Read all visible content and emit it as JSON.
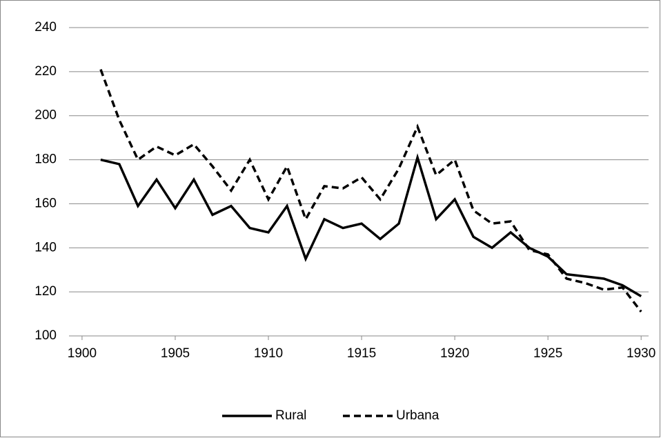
{
  "chart_data": {
    "type": "line",
    "x": [
      1901,
      1902,
      1903,
      1904,
      1905,
      1906,
      1907,
      1908,
      1909,
      1910,
      1911,
      1912,
      1913,
      1914,
      1915,
      1916,
      1917,
      1918,
      1919,
      1920,
      1921,
      1922,
      1923,
      1924,
      1925,
      1926,
      1927,
      1928,
      1929,
      1930
    ],
    "series": [
      {
        "name": "Rural",
        "color": "#000000",
        "dash": false,
        "values": [
          180,
          178,
          159,
          171,
          158,
          171,
          155,
          159,
          149,
          147,
          159,
          135,
          153,
          149,
          151,
          144,
          151,
          181,
          153,
          162,
          145,
          140,
          147,
          140,
          136,
          128,
          127,
          126,
          123,
          118
        ]
      },
      {
        "name": "Urbana",
        "color": "#000000",
        "dash": true,
        "values": [
          221,
          198,
          180,
          186,
          182,
          187,
          177,
          166,
          180,
          162,
          177,
          153,
          168,
          167,
          172,
          162,
          176,
          195,
          173,
          180,
          157,
          151,
          152,
          139,
          137,
          126,
          124,
          121,
          122,
          111
        ]
      }
    ],
    "xlim": [
      1899.3,
      1930.4
    ],
    "xticks": [
      1900,
      1905,
      1910,
      1915,
      1920,
      1925,
      1930
    ],
    "ylim": [
      100,
      240
    ],
    "yticks": [
      100,
      120,
      140,
      160,
      180,
      200,
      220,
      240
    ],
    "grid": true,
    "legend": "bottom"
  }
}
